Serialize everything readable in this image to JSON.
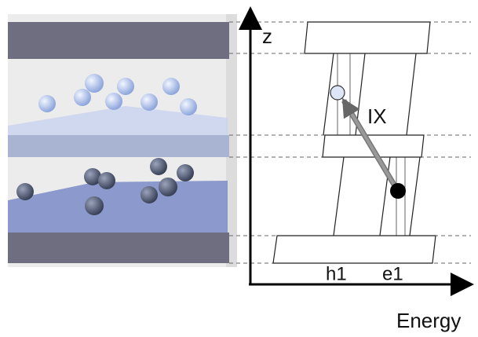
{
  "labels": {
    "axis_z": "z",
    "exciton": "IX",
    "hole_level": "h1",
    "electron_level": "e1",
    "axis_energy": "Energy"
  }
}
